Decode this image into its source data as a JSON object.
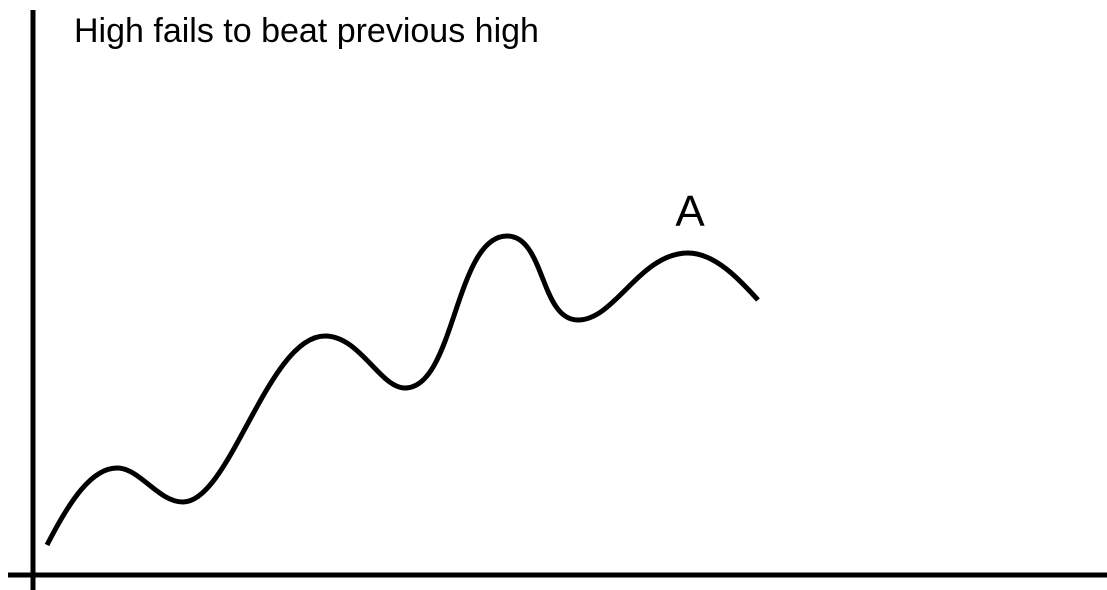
{
  "title": "High fails to beat previous high",
  "annotations": [
    {
      "label": "A"
    }
  ]
}
